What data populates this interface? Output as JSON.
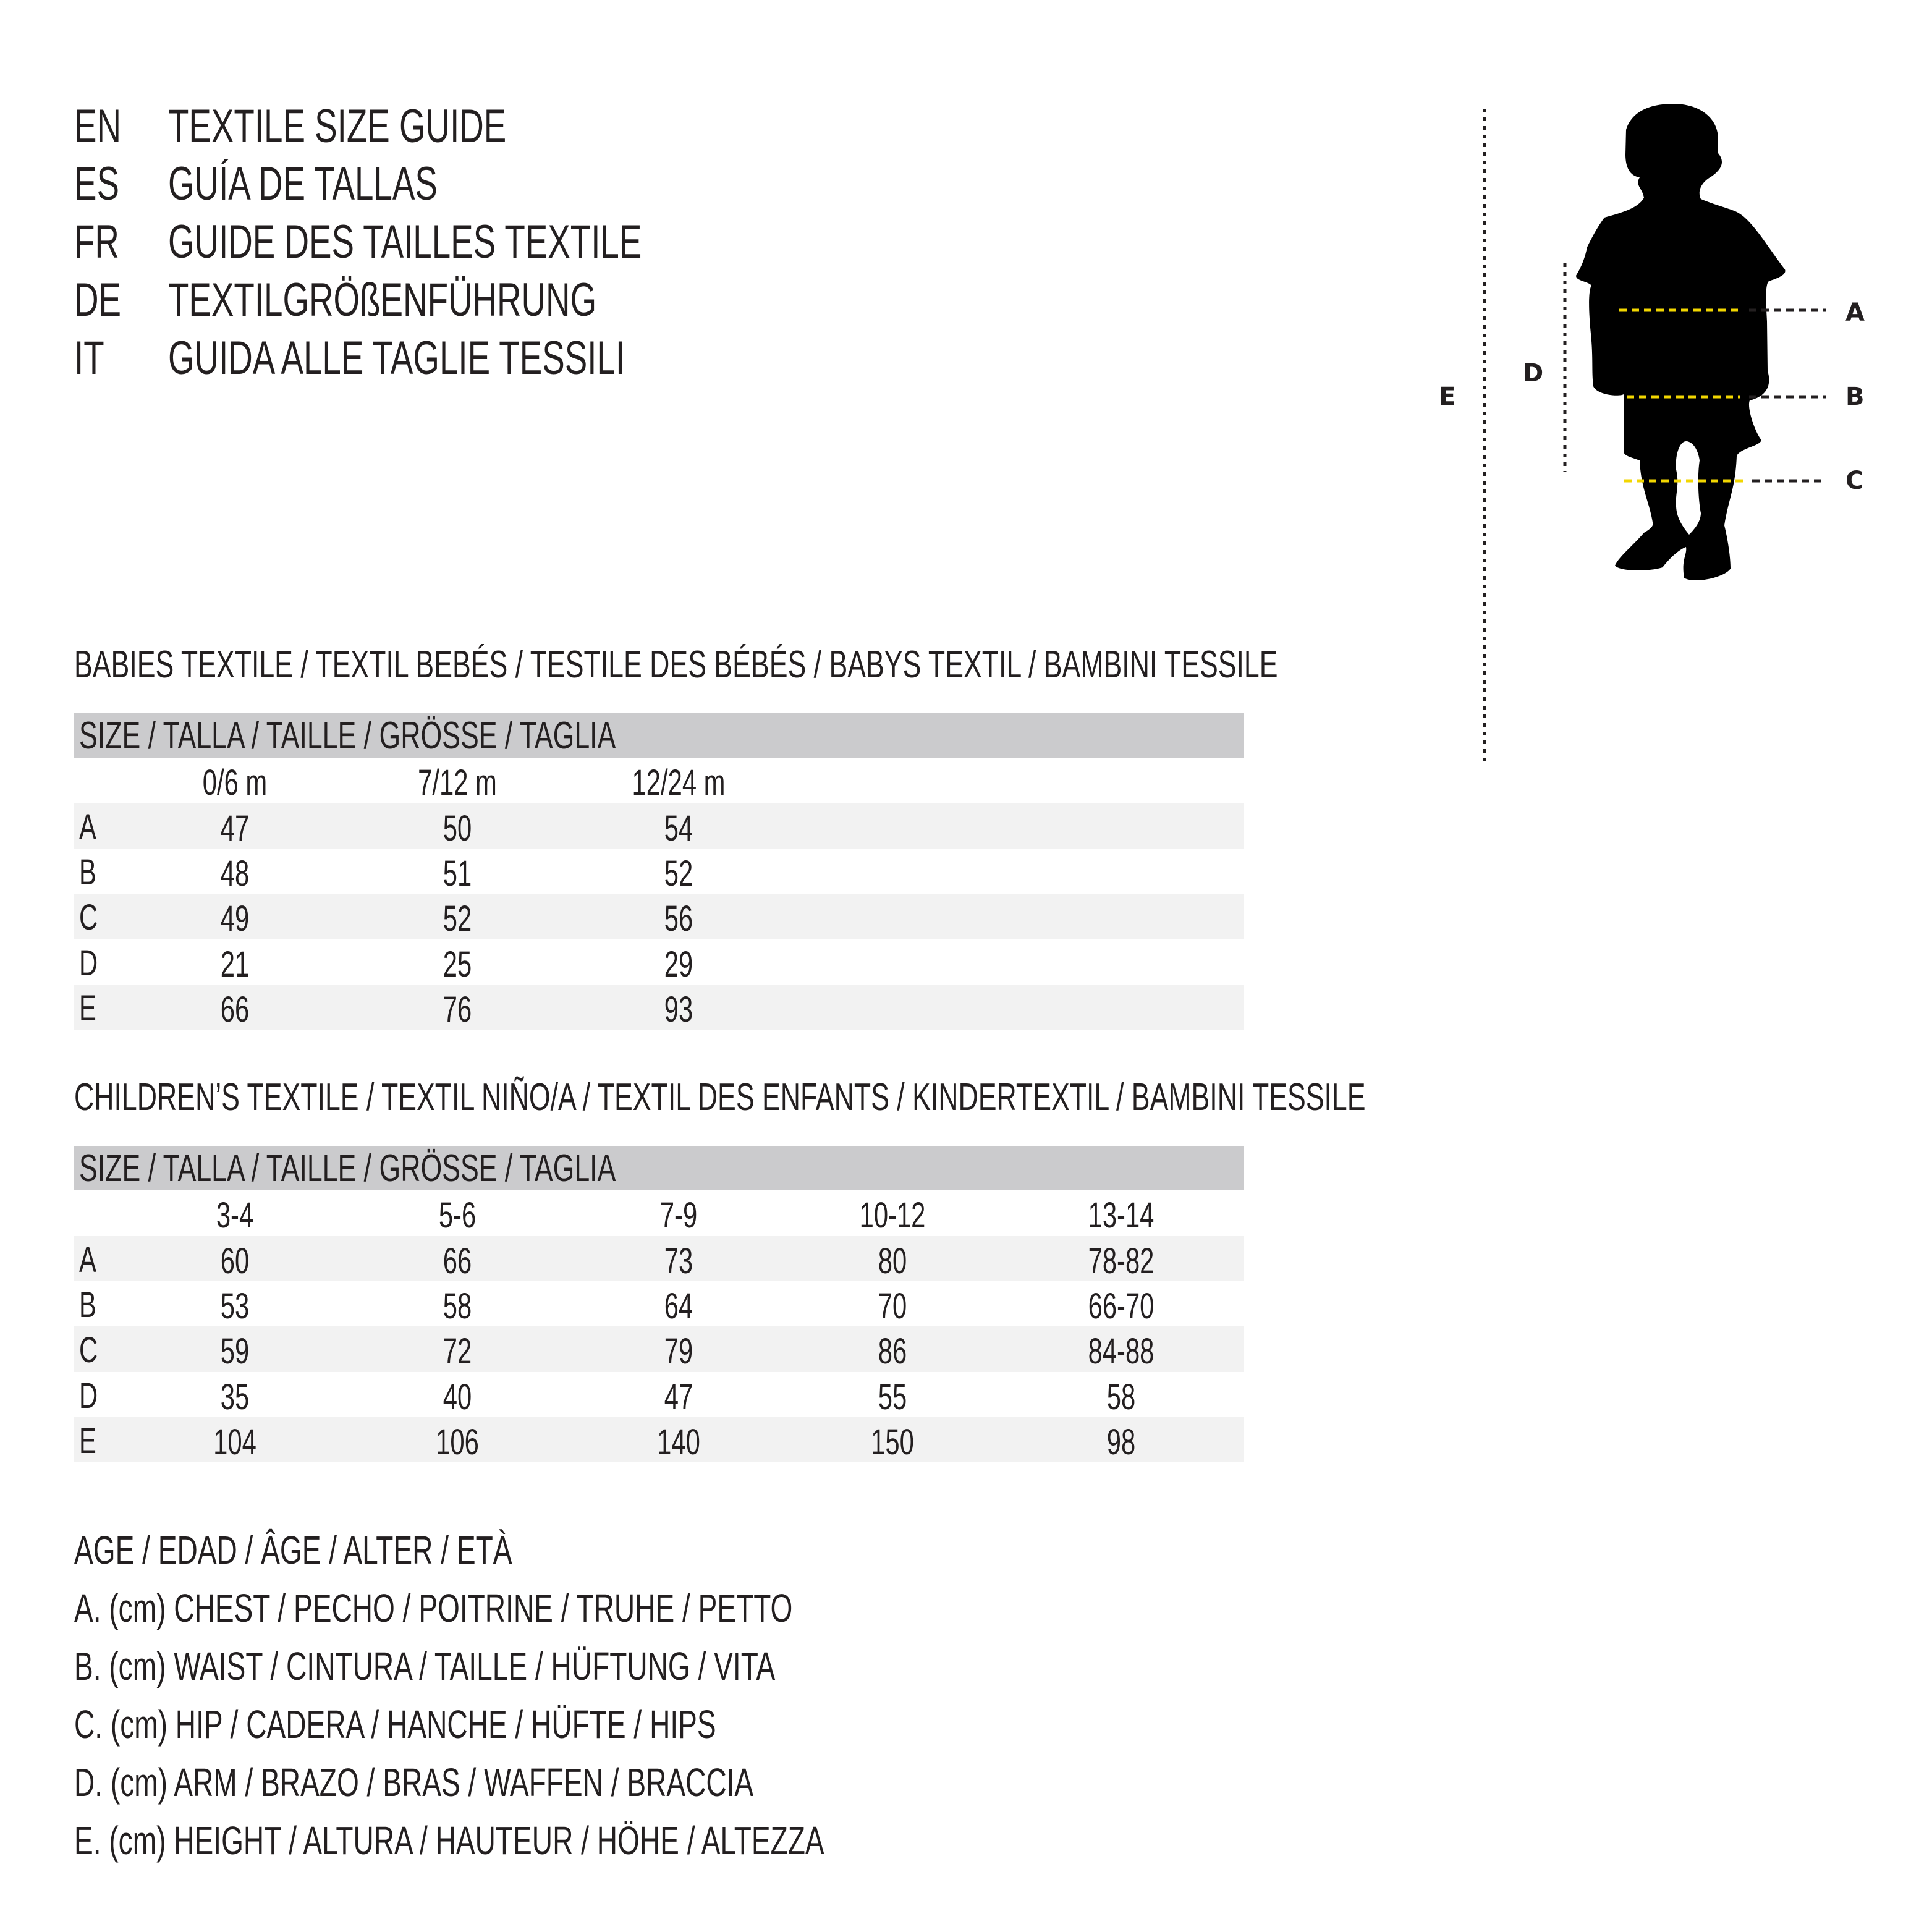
{
  "header": {
    "lines": [
      {
        "lang": "EN",
        "text": "TEXTILE SIZE GUIDE"
      },
      {
        "lang": "ES",
        "text": "GUÍA DE TALLAS"
      },
      {
        "lang": "FR",
        "text": "GUIDE DES TAILLES TEXTILE"
      },
      {
        "lang": "DE",
        "text": "TEXTILGRÖßENFÜHRUNG"
      },
      {
        "lang": "IT",
        "text": "GUIDA ALLE TAGLIE TESSILI"
      }
    ]
  },
  "babies": {
    "title": "BABIES TEXTILE / TEXTIL BEBÉS / TESTILE DES BÉBÉS / BABYS TEXTIL / BAMBINI TESSILE",
    "band": "SIZE / TALLA / TAILLE / GRÖSSE / TAGLIA",
    "columns": [
      "0/6 m",
      "7/12 m",
      "12/24 m"
    ],
    "rows": [
      {
        "label": "A",
        "values": [
          "47",
          "50",
          "54"
        ]
      },
      {
        "label": "B",
        "values": [
          "48",
          "51",
          "52"
        ]
      },
      {
        "label": "C",
        "values": [
          "49",
          "52",
          "56"
        ]
      },
      {
        "label": "D",
        "values": [
          "21",
          "25",
          "29"
        ]
      },
      {
        "label": "E",
        "values": [
          "66",
          "76",
          "93"
        ]
      }
    ]
  },
  "children": {
    "title": "CHILDREN’S TEXTILE / TEXTIL NIÑO/A / TEXTIL DES ENFANTS / KINDERTEXTIL / BAMBINI TESSILE",
    "band": "SIZE / TALLA / TAILLE / GRÖSSE / TAGLIA",
    "columns": [
      "3-4",
      "5-6",
      "7-9",
      "10-12",
      "13-14"
    ],
    "rows": [
      {
        "label": "A",
        "values": [
          "60",
          "66",
          "73",
          "80",
          "78-82"
        ]
      },
      {
        "label": "B",
        "values": [
          "53",
          "58",
          "64",
          "70",
          "66-70"
        ]
      },
      {
        "label": "C",
        "values": [
          "59",
          "72",
          "79",
          "86",
          "84-88"
        ]
      },
      {
        "label": "D",
        "values": [
          "35",
          "40",
          "47",
          "55",
          "58"
        ]
      },
      {
        "label": "E",
        "values": [
          "104",
          "106",
          "140",
          "150",
          "98"
        ]
      }
    ]
  },
  "legend": [
    "AGE / EDAD / ÂGE / ALTER / ETÀ",
    "A. (cm) CHEST / PECHO / POITRINE / TRUHE / PETTO",
    "B. (cm) WAIST / CINTURA / TAILLE / HÜFTUNG / VITA",
    "C. (cm) HIP / CADERA / HANCHE / HÜFTE / HIPS",
    "D. (cm) ARM / BRAZO / BRAS / WAFFEN / BRACCIA",
    "E. (cm) HEIGHT / ALTURA / HAUTEUR / HÖHE / ALTEZZA"
  ],
  "figure": {
    "labels": {
      "A": "A",
      "B": "B",
      "C": "C",
      "D": "D",
      "E": "E"
    },
    "colors": {
      "measure_line": "#f2d600",
      "silhouette": "#000000",
      "guide": "#231f20"
    }
  }
}
